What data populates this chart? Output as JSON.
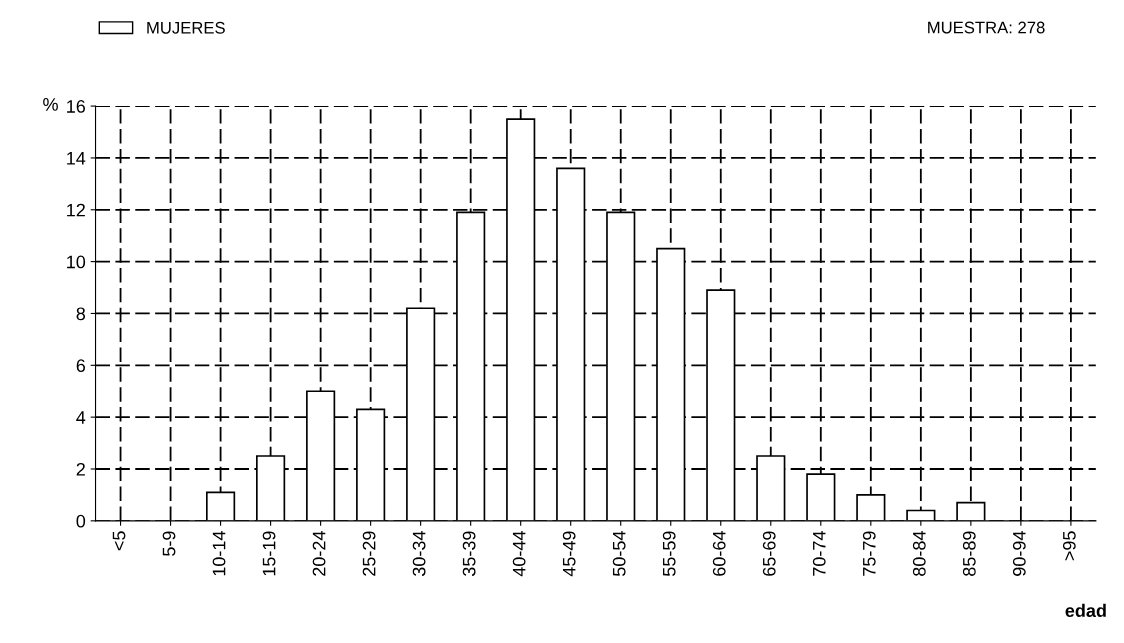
{
  "chart_data": {
    "type": "bar",
    "ylabel": "%",
    "xlabel": "edad",
    "categories": [
      "<5",
      "5-9",
      "10-14",
      "15-19",
      "20-24",
      "25-29",
      "30-34",
      "35-39",
      "40-44",
      "45-49",
      "50-54",
      "55-59",
      "60-64",
      "65-69",
      "70-74",
      "75-79",
      "80-84",
      "85-89",
      "90-94",
      ">95"
    ],
    "series": [
      {
        "name": "MUJERES",
        "color": "#ffffff",
        "values": [
          0,
          0,
          1.1,
          2.5,
          5.0,
          4.3,
          8.2,
          11.9,
          15.5,
          13.6,
          11.9,
          10.5,
          8.9,
          2.5,
          1.8,
          1.0,
          0.4,
          0.7,
          0,
          0
        ]
      }
    ],
    "ylim": [
      0,
      16
    ],
    "yticks": [
      0,
      2,
      4,
      6,
      8,
      10,
      12,
      14,
      16
    ],
    "grid": true,
    "legend": "top left",
    "annotations": [
      "MUESTRA: 278"
    ]
  }
}
